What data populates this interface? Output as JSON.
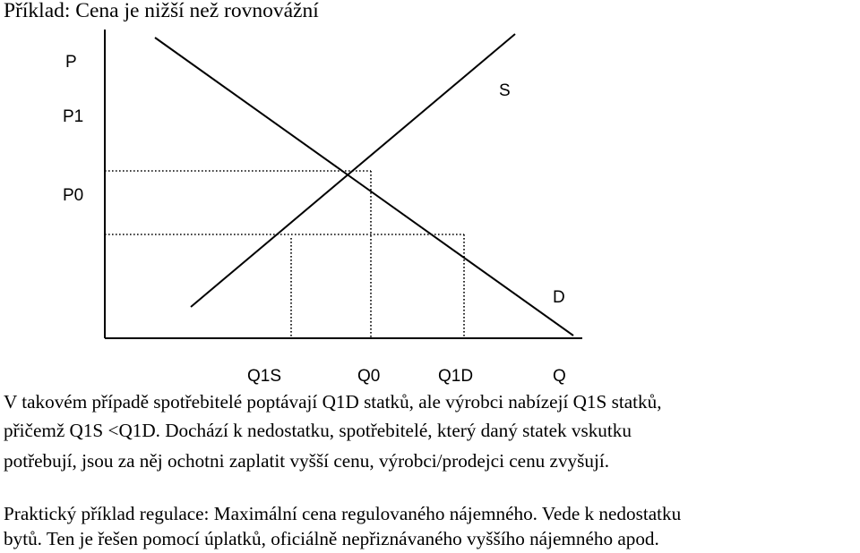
{
  "title": "Příklad: Cena je nižší než rovnovážní",
  "diagram": {
    "y_axis_label": "P",
    "p1_label": "P1",
    "p0_label": "P0",
    "supply_label": "S",
    "demand_label": "D",
    "x_tick_labels": [
      "Q1S",
      "Q0",
      "Q1D",
      "Q"
    ]
  },
  "paragraph1": [
    "V takovém případě spotřebitelé poptávají Q1D statků, ale výrobci nabízejí Q1S statků,",
    "přičemž Q1S <Q1D. Dochází k nedostatku, spotřebitelé, který daný statek vskutku",
    "potřebují, jsou za něj ochotni zaplatit vyšší cenu, výrobci/prodejci cenu zvyšují."
  ],
  "paragraph2": [
    "Praktický příklad regulace: Maximální cena regulovaného nájemného. Vede k nedostatku",
    "bytů. Ten je řešen pomocí úplatků, oficiálně nepřiznávaného vyššího nájemného apod."
  ]
}
